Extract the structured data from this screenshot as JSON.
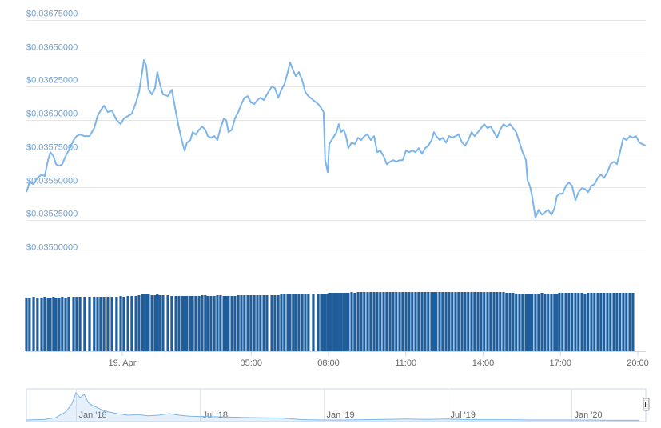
{
  "chart_data": [
    {
      "type": "line",
      "x": [
        -3.72,
        -3.6,
        -3.44,
        -3.29,
        -3.13,
        -3.01,
        -2.88,
        -2.79,
        -2.67,
        -2.57,
        -2.45,
        -2.33,
        -2.2,
        -2.08,
        -1.89,
        -1.77,
        -1.64,
        -1.46,
        -1.27,
        -1.09,
        -0.96,
        -0.84,
        -0.71,
        -0.56,
        -0.4,
        -0.22,
        -0.06,
        0.06,
        0.22,
        0.37,
        0.53,
        0.65,
        0.78,
        0.84,
        0.93,
        1.02,
        1.15,
        1.27,
        1.36,
        1.46,
        1.58,
        1.77,
        1.92,
        2.08,
        2.2,
        2.33,
        2.42,
        2.51,
        2.64,
        2.73,
        2.85,
        2.98,
        3.1,
        3.22,
        3.32,
        3.44,
        3.57,
        3.69,
        3.81,
        3.94,
        4.03,
        4.12,
        4.25,
        4.37,
        4.5,
        4.62,
        4.74,
        4.87,
        4.99,
        5.12,
        5.24,
        5.36,
        5.49,
        5.61,
        5.8,
        5.92,
        6.05,
        6.17,
        6.29,
        6.42,
        6.51,
        6.63,
        6.73,
        6.85,
        6.98,
        7.1,
        7.22,
        7.41,
        7.6,
        7.72,
        7.81,
        7.87,
        7.97,
        8.03,
        8.12,
        8.22,
        8.31,
        8.4,
        8.49,
        8.59,
        8.68,
        8.77,
        8.9,
        9.02,
        9.15,
        9.27,
        9.39,
        9.52,
        9.64,
        9.77,
        9.89,
        10.01,
        10.14,
        10.26,
        10.39,
        10.51,
        10.63,
        10.76,
        10.88,
        11.01,
        11.13,
        11.25,
        11.38,
        11.5,
        11.63,
        11.75,
        11.87,
        12,
        12.09,
        12.18,
        12.31,
        12.43,
        12.56,
        12.68,
        12.8,
        12.93,
        13.05,
        13.18,
        13.3,
        13.42,
        13.55,
        13.67,
        13.8,
        13.92,
        14.04,
        14.17,
        14.29,
        14.42,
        14.54,
        14.66,
        14.79,
        14.91,
        15.04,
        15.16,
        15.28,
        15.41,
        15.53,
        15.66,
        15.72,
        15.81,
        15.9,
        16.03,
        16.15,
        16.28,
        16.4,
        16.52,
        16.65,
        16.77,
        16.86,
        16.96,
        17.08,
        17.21,
        17.33,
        17.45,
        17.58,
        17.7,
        17.83,
        17.95,
        18.07,
        18.2,
        18.32,
        18.45,
        18.57,
        18.69,
        18.82,
        18.94,
        19.07,
        19.19,
        19.31,
        19.44,
        19.56,
        19.69,
        19.81,
        19.93,
        20.06,
        20.18,
        20.31
      ],
      "series": [
        {
          "color": "#7cb5ec",
          "values": [
            0.03546,
            0.035532,
            0.03552,
            0.035568,
            0.035592,
            0.03558,
            0.0357,
            0.03576,
            0.03573,
            0.03567,
            0.035658,
            0.03567,
            0.03573,
            0.035772,
            0.03585,
            0.03588,
            0.035892,
            0.03588,
            0.03588,
            0.03594,
            0.03603,
            0.036072,
            0.036108,
            0.03606,
            0.036072,
            0.036,
            0.03597,
            0.036012,
            0.03603,
            0.036048,
            0.036132,
            0.03621,
            0.036372,
            0.03645,
            0.036408,
            0.036228,
            0.036192,
            0.03624,
            0.03636,
            0.03627,
            0.036192,
            0.03618,
            0.036228,
            0.03606,
            0.03594,
            0.035832,
            0.035772,
            0.035832,
            0.03585,
            0.03591,
            0.035892,
            0.035928,
            0.035952,
            0.035928,
            0.03588,
            0.035868,
            0.03588,
            0.03585,
            0.03594,
            0.036012,
            0.036,
            0.03591,
            0.035928,
            0.036012,
            0.03606,
            0.03612,
            0.036168,
            0.03618,
            0.036132,
            0.03612,
            0.03615,
            0.036168,
            0.03615,
            0.036192,
            0.036252,
            0.03624,
            0.036168,
            0.036228,
            0.03627,
            0.03636,
            0.036432,
            0.036372,
            0.03633,
            0.03636,
            0.0363,
            0.03621,
            0.03618,
            0.03615,
            0.03612,
            0.03609,
            0.03606,
            0.0357,
            0.03561,
            0.03582,
            0.03585,
            0.03588,
            0.03591,
            0.03597,
            0.03591,
            0.035928,
            0.03588,
            0.03579,
            0.035832,
            0.03582,
            0.035868,
            0.03585,
            0.03588,
            0.035892,
            0.03585,
            0.03588,
            0.03576,
            0.035772,
            0.03573,
            0.03567,
            0.035688,
            0.0357,
            0.035688,
            0.0357,
            0.0357,
            0.035772,
            0.03576,
            0.035772,
            0.03576,
            0.03579,
            0.035748,
            0.03579,
            0.035808,
            0.03585,
            0.03591,
            0.03588,
            0.03585,
            0.035868,
            0.035832,
            0.03588,
            0.035868,
            0.03588,
            0.035892,
            0.035832,
            0.035808,
            0.03585,
            0.03591,
            0.03588,
            0.03591,
            0.03594,
            0.03597,
            0.03594,
            0.035952,
            0.03591,
            0.035868,
            0.035928,
            0.03597,
            0.035952,
            0.03597,
            0.03594,
            0.03591,
            0.035832,
            0.03576,
            0.0357,
            0.03555,
            0.035508,
            0.03543,
            0.035268,
            0.035328,
            0.035292,
            0.03531,
            0.035328,
            0.035292,
            0.03534,
            0.03543,
            0.035448,
            0.035448,
            0.035508,
            0.035532,
            0.035508,
            0.0354,
            0.03546,
            0.03549,
            0.035484,
            0.03546,
            0.035508,
            0.03552,
            0.035568,
            0.035592,
            0.035568,
            0.03561,
            0.03567,
            0.035688,
            0.03567,
            0.03576,
            0.035868,
            0.03585,
            0.03588,
            0.035868,
            0.03588,
            0.035832,
            0.03582,
            0.035808
          ]
        }
      ],
      "volume": {
        "color": "#1f5d9b",
        "ylim": [
          0,
          100
        ],
        "values": [
          67,
          67,
          68,
          67,
          67,
          68,
          67,
          67,
          68,
          67,
          67,
          68,
          67,
          68,
          68,
          68,
          68,
          68,
          68,
          68,
          68,
          68,
          68,
          68,
          68,
          68,
          69,
          68,
          69,
          69,
          69,
          70,
          71,
          71,
          71,
          71,
          70,
          70,
          71,
          70,
          70,
          70,
          69,
          69,
          69,
          69,
          69,
          69,
          69,
          69,
          69,
          69,
          70,
          70,
          69,
          69,
          69,
          70,
          70,
          69,
          69,
          69,
          69,
          69,
          70,
          70,
          70,
          70,
          70,
          70,
          70,
          70,
          70,
          70,
          70,
          70,
          70,
          71,
          71,
          71,
          71,
          71,
          71,
          71,
          71,
          71,
          71,
          72,
          71,
          72,
          72,
          72,
          72,
          73,
          73,
          73,
          73,
          73,
          73,
          73,
          73,
          73,
          74,
          73,
          74,
          74,
          74,
          74,
          74,
          74,
          74,
          74,
          74,
          74,
          74,
          74,
          74,
          74,
          74,
          74,
          74,
          74,
          74,
          74,
          74,
          74,
          74,
          74,
          74,
          74,
          74,
          74,
          74,
          74,
          74,
          74,
          74,
          74,
          74,
          74,
          74,
          74,
          74,
          74,
          74,
          74,
          74,
          74,
          74,
          74,
          74,
          73,
          73,
          73,
          72,
          72,
          72,
          72,
          72,
          72,
          72,
          72,
          72,
          73,
          72,
          72,
          72,
          72,
          72,
          73,
          73,
          73,
          73,
          73,
          73,
          73,
          73,
          72,
          73,
          73,
          73,
          73,
          73,
          73,
          73,
          73,
          73,
          73,
          73,
          73,
          73,
          73,
          73
        ]
      },
      "xlim": [
        -3.72,
        20.31
      ],
      "xticks": [
        {
          "value": 0,
          "label": "19. Apr"
        },
        {
          "value": 5,
          "label": "05:00"
        },
        {
          "value": 8,
          "label": "08:00"
        },
        {
          "value": 11,
          "label": "11:00"
        },
        {
          "value": 14,
          "label": "14:00"
        },
        {
          "value": 17,
          "label": "17:00"
        },
        {
          "value": 20,
          "label": "20:00"
        }
      ],
      "ylim": [
        0.035,
        0.03675
      ],
      "yticks": [
        {
          "value": 0.035,
          "label": "$0.03500000"
        },
        {
          "value": 0.03525,
          "label": "$0.03525000"
        },
        {
          "value": 0.0355,
          "label": "$0.03550000"
        },
        {
          "value": 0.03575,
          "label": "$0.03575000"
        },
        {
          "value": 0.036,
          "label": "$0.03600000"
        },
        {
          "value": 0.03625,
          "label": "$0.03625000"
        },
        {
          "value": 0.0365,
          "label": "$0.03650000"
        },
        {
          "value": 0.03675,
          "label": "$0.03675000"
        }
      ],
      "grid": true
    },
    {
      "type": "area",
      "x": [
        -2.4,
        -1.5,
        -1,
        -0.5,
        -0.2,
        0,
        0.2,
        0.4,
        0.6,
        0.8,
        1,
        1.3,
        1.6,
        2,
        2.5,
        3,
        3.5,
        4,
        4.5,
        5,
        5.5,
        6,
        7,
        8,
        9,
        10,
        11,
        12,
        13,
        14,
        15,
        16,
        17,
        18,
        19,
        20,
        21,
        22,
        23,
        24,
        25,
        26,
        27.3
      ],
      "values": [
        0.05,
        0.07,
        0.12,
        0.3,
        0.55,
        0.9,
        0.75,
        0.85,
        0.6,
        0.5,
        0.45,
        0.35,
        0.3,
        0.25,
        0.2,
        0.22,
        0.18,
        0.2,
        0.25,
        0.2,
        0.17,
        0.16,
        0.15,
        0.13,
        0.12,
        0.11,
        0.06,
        0.05,
        0.05,
        0.06,
        0.07,
        0.08,
        0.07,
        0.08,
        0.06,
        0.06,
        0.06,
        0.05,
        0.05,
        0.05,
        0.05,
        0.04,
        0.04
      ],
      "color": "#7cb5ec",
      "xlim": [
        -2.4,
        27.6
      ],
      "ylim": [
        0,
        1
      ],
      "xticks": [
        {
          "value": 0,
          "label": "Jan '18"
        },
        {
          "value": 6,
          "label": "Jul '18"
        },
        {
          "value": 12,
          "label": "Jan '19"
        },
        {
          "value": 18,
          "label": "Jul '19"
        },
        {
          "value": 24,
          "label": "Jan '20"
        }
      ]
    }
  ]
}
